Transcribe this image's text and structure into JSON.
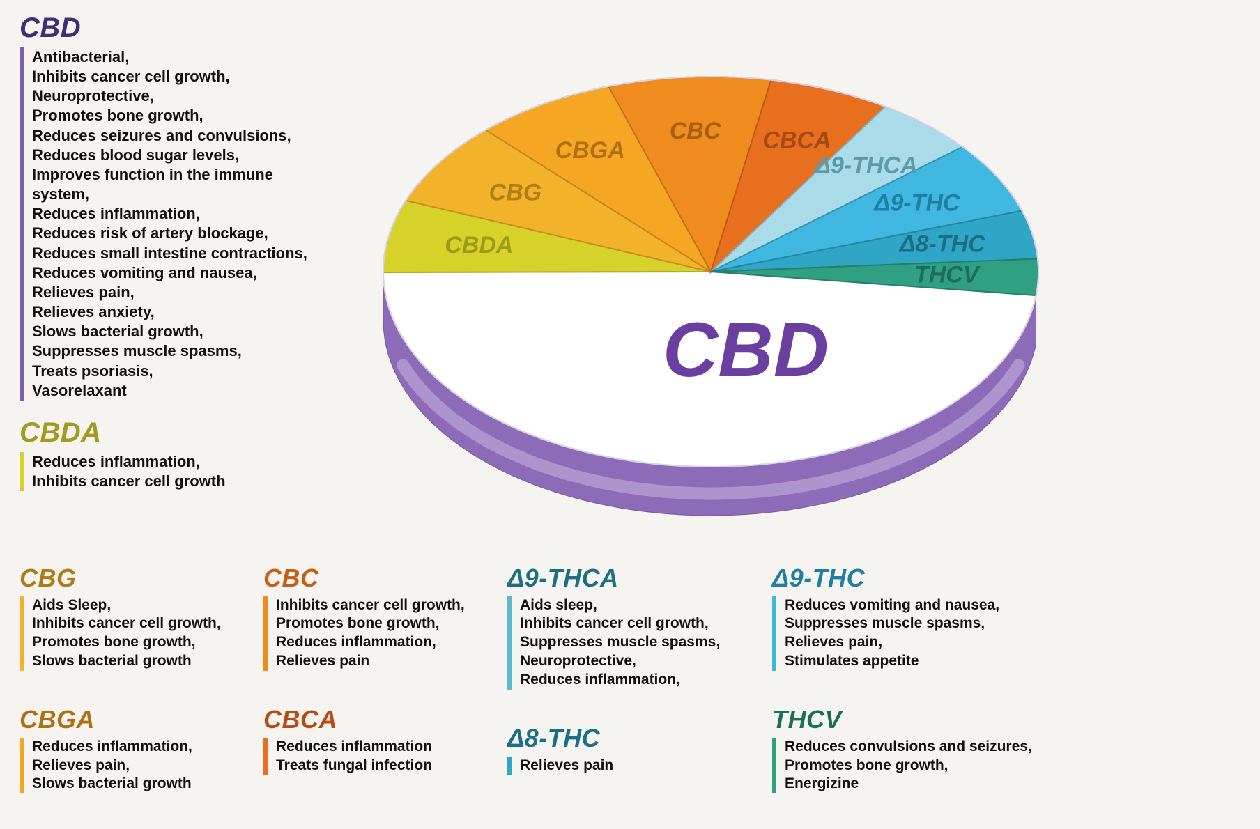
{
  "chart": {
    "type": "pie-3d",
    "center_label": "CBD",
    "center_label_color": "#6b3fa0",
    "background": "#f5f4f0",
    "depth_color": "#8d6bb8",
    "depth_highlight": "#c9b6df",
    "slices": [
      {
        "key": "CBD",
        "label": "CBD",
        "value": 48,
        "color": "#ffffff",
        "label_color": "#6b3fa0"
      },
      {
        "key": "CBDA",
        "label": "CBDA",
        "value": 6,
        "color": "#d7d22a",
        "label_color": "#9b9a1a"
      },
      {
        "key": "CBG",
        "label": "CBG",
        "value": 7,
        "color": "#f2b32a",
        "label_color": "#b47d14"
      },
      {
        "key": "CBGA",
        "label": "CBGA",
        "value": 7,
        "color": "#f5a623",
        "label_color": "#b06f12"
      },
      {
        "key": "CBC",
        "label": "CBC",
        "value": 8,
        "color": "#f08c1d",
        "label_color": "#a85e10"
      },
      {
        "key": "CBCA",
        "label": "CBCA",
        "value": 6,
        "color": "#e86f1d",
        "label_color": "#a54a12"
      },
      {
        "key": "d9THCA",
        "label": "Δ9-THCA",
        "value": 5,
        "color": "#a9dbe8",
        "label_color": "#5e99a8"
      },
      {
        "key": "d9THC",
        "label": "Δ9-THC",
        "value": 6,
        "color": "#3fb7e0",
        "label_color": "#1f7fa3"
      },
      {
        "key": "d8THC",
        "label": "Δ8-THC",
        "value": 4,
        "color": "#2fa6c6",
        "label_color": "#1a6e86"
      },
      {
        "key": "THCV",
        "label": "THCV",
        "value": 3,
        "color": "#2fa081",
        "label_color": "#1c6e58"
      }
    ]
  },
  "sections": {
    "CBD": {
      "title": "CBD",
      "title_color": "#3f2f7a",
      "bar_color": "#7a5fb0",
      "items": [
        "Antibacterial,",
        "Inhibits cancer cell growth,",
        "Neuroprotective,",
        "Promotes bone growth,",
        "Reduces seizures and convulsions,",
        "Reduces blood sugar levels,",
        "Improves function in the immune system,",
        "Reduces inflammation,",
        "Reduces risk of artery blockage,",
        "Reduces small intestine contractions,",
        "Reduces vomiting and nausea,",
        "Relieves pain,",
        "Relieves anxiety,",
        "Slows bacterial growth,",
        "Suppresses muscle spasms,",
        "Treats psoriasis,",
        "Vasorelaxant"
      ]
    },
    "CBDA": {
      "title": "CBDA",
      "title_color": "#a39a20",
      "bar_color": "#d7d22a",
      "items": [
        "Reduces inflammation,",
        "Inhibits cancer cell growth"
      ]
    },
    "CBG": {
      "title": "CBG",
      "title_color": "#b27a14",
      "bar_color": "#f2b32a",
      "items": [
        "Aids Sleep,",
        "Inhibits cancer cell growth,",
        "Promotes bone growth,",
        "Slows bacterial growth"
      ]
    },
    "CBGA": {
      "title": "CBGA",
      "title_color": "#b06f12",
      "bar_color": "#f5a623",
      "items": [
        "Reduces inflammation,",
        "Relieves pain,",
        "Slows bacterial growth"
      ]
    },
    "CBC": {
      "title": "CBC",
      "title_color": "#c45f15",
      "bar_color": "#f08c1d",
      "items": [
        "Inhibits cancer cell growth,",
        "Promotes bone growth,",
        "Reduces inflammation,",
        "Relieves pain"
      ]
    },
    "CBCA": {
      "title": "CBCA",
      "title_color": "#b84c14",
      "bar_color": "#e86f1d",
      "items": [
        "Reduces inflammation",
        "Treats fungal infection"
      ]
    },
    "d9THCA": {
      "title": "Δ9-THCA",
      "title_color": "#1f6f82",
      "bar_color": "#5fb9cf",
      "items": [
        "Aids sleep,",
        "Inhibits cancer cell  growth,",
        "Suppresses muscle spasms,",
        "Neuroprotective,",
        "Reduces inflammation,"
      ]
    },
    "d8THC": {
      "title": "Δ8-THC",
      "title_color": "#1a6e86",
      "bar_color": "#2fa6c6",
      "items": [
        "Relieves pain"
      ]
    },
    "d9THC": {
      "title": "Δ9-THC",
      "title_color": "#1f7fa3",
      "bar_color": "#3fb7e0",
      "items": [
        "Reduces vomiting and nausea,",
        "Suppresses muscle spasms,",
        "Relieves pain,",
        "Stimulates appetite"
      ]
    },
    "THCV": {
      "title": "THCV",
      "title_color": "#1c6e58",
      "bar_color": "#2fa081",
      "items": [
        "Reduces convulsions and seizures,",
        "Promotes bone growth,",
        "Energizine"
      ]
    }
  }
}
